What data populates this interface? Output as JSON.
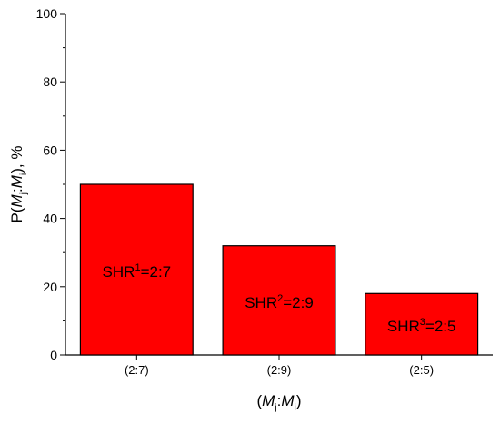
{
  "chart_data": {
    "type": "bar",
    "categories": [
      "(2:7)",
      "(2:9)",
      "(2:5)"
    ],
    "values": [
      50,
      32,
      18
    ],
    "bar_labels": [
      {
        "base": "SHR",
        "sup": "1",
        "rest": "=2:7"
      },
      {
        "base": "SHR",
        "sup": "2",
        "rest": "=2:9"
      },
      {
        "base": "SHR",
        "sup": "3",
        "rest": "=2:5"
      }
    ],
    "ylim": [
      0,
      100
    ],
    "yticks": [
      0,
      20,
      40,
      60,
      80,
      100
    ],
    "yminor_step": 10,
    "ylabel": {
      "prefix": "P(",
      "var1": "M",
      "sub1": "j",
      "sep": ":",
      "var2": "M",
      "sub2": "i",
      "suffix": "), %"
    },
    "xlabel": {
      "prefix": "(",
      "var1": "M",
      "sub1": "j",
      "sep": ":",
      "var2": "M",
      "sub2": "i",
      "suffix": ")"
    },
    "grid": false,
    "legend": "none",
    "bar_color": "#ff0000",
    "edge_color": "#000000"
  }
}
